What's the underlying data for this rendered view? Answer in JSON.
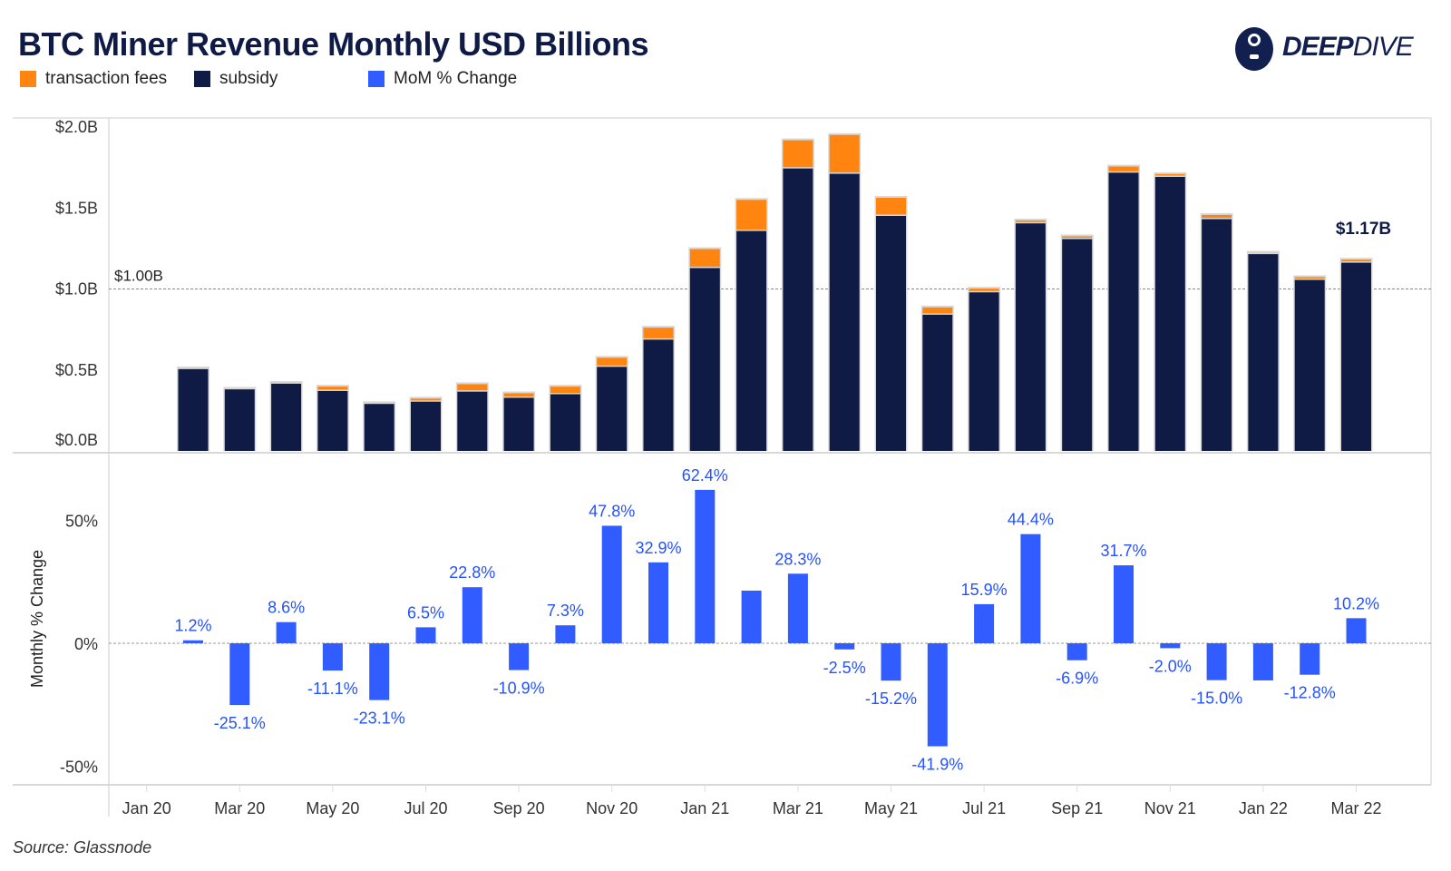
{
  "colors": {
    "fees": "#ff8510",
    "subsidy": "#101b45",
    "mom": "#315cff",
    "mom_label": "#2552ff"
  },
  "logo": {
    "bold": "DEEP",
    "thin": "DIVE"
  },
  "source": "Source: Glassnode",
  "chart_data": [
    {
      "type": "bar",
      "stacked": true,
      "title": "BTC Miner Revenue Monthly USD Billions",
      "legend": [
        "transaction fees",
        "subsidy",
        "MoM % Change"
      ],
      "legend_placement": "top-left",
      "ylabel": "",
      "ylim": [
        0,
        2.0
      ],
      "yticks": [
        {
          "v": 2.0,
          "label": "$2.0B"
        },
        {
          "v": 1.5,
          "label": "$1.5B"
        },
        {
          "v": 1.0,
          "label": "$1.0B"
        },
        {
          "v": 0.5,
          "label": "$0.5B"
        },
        {
          "v": 0.0,
          "label": "$0.0B"
        }
      ],
      "reference_line": {
        "value": 1.0,
        "label": "$1.00B"
      },
      "end_label": "$1.17B",
      "categories": [
        "Feb 20",
        "Mar 20",
        "Apr 20",
        "May 20",
        "Jun 20",
        "Jul 20",
        "Aug 20",
        "Sep 20",
        "Oct 20",
        "Nov 20",
        "Dec 20",
        "Jan 21",
        "Feb 21",
        "Mar 21",
        "Apr 21",
        "May 21",
        "Jun 21",
        "Jul 21",
        "Aug 21",
        "Sep 21",
        "Oct 21",
        "Nov 21",
        "Dec 21",
        "Jan 22",
        "Feb 22",
        "Mar 22"
      ],
      "series": [
        {
          "name": "subsidy",
          "values": [
            0.505,
            0.38,
            0.415,
            0.37,
            0.29,
            0.304,
            0.366,
            0.328,
            0.35,
            0.519,
            0.687,
            1.129,
            1.358,
            1.744,
            1.711,
            1.451,
            0.841,
            0.979,
            1.405,
            1.308,
            1.718,
            1.692,
            1.431,
            1.215,
            1.056,
            1.162
          ]
        },
        {
          "name": "transaction fees",
          "values": [
            0.005,
            0.004,
            0.005,
            0.027,
            0.005,
            0.019,
            0.046,
            0.028,
            0.047,
            0.056,
            0.074,
            0.117,
            0.192,
            0.174,
            0.24,
            0.112,
            0.045,
            0.023,
            0.018,
            0.017,
            0.038,
            0.017,
            0.026,
            0.009,
            0.017,
            0.019
          ]
        }
      ]
    },
    {
      "type": "bar",
      "ylabel": "Monthly % Change",
      "ylim": [
        -55,
        75
      ],
      "yticks": [
        {
          "v": 50,
          "label": "50%"
        },
        {
          "v": 0,
          "label": "0%"
        },
        {
          "v": -50,
          "label": "-50%"
        }
      ],
      "categories": [
        "Feb 20",
        "Mar 20",
        "Apr 20",
        "May 20",
        "Jun 20",
        "Jul 20",
        "Aug 20",
        "Sep 20",
        "Oct 20",
        "Nov 20",
        "Dec 20",
        "Jan 21",
        "Feb 21",
        "Mar 21",
        "Apr 21",
        "May 21",
        "Jun 21",
        "Jul 21",
        "Aug 21",
        "Sep 21",
        "Oct 21",
        "Nov 21",
        "Dec 21",
        "Jan 22",
        "Feb 22",
        "Mar 22"
      ],
      "values": [
        1.2,
        -25.1,
        8.6,
        -11.1,
        -23.1,
        6.5,
        22.8,
        -10.9,
        7.3,
        47.8,
        32.9,
        62.4,
        21.4,
        28.3,
        -2.5,
        -15.2,
        -41.9,
        15.9,
        44.4,
        -6.9,
        31.7,
        -2.0,
        -15.0,
        -15.1,
        -12.8,
        10.2
      ],
      "data_labels": [
        "1.2%",
        "-25.1%",
        "8.6%",
        "-11.1%",
        "-23.1%",
        "6.5%",
        "22.8%",
        "-10.9%",
        "7.3%",
        "47.8%",
        "32.9%",
        "62.4%",
        null,
        "28.3%",
        "-2.5%",
        "-15.2%",
        "-41.9%",
        "15.9%",
        "44.4%",
        "-6.9%",
        "31.7%",
        "-2.0%",
        "-15.0%",
        null,
        "-12.8%",
        "10.2%"
      ],
      "xticks": [
        "Jan 20",
        "Mar 20",
        "May 20",
        "Jul 20",
        "Sep 20",
        "Nov 20",
        "Jan 21",
        "Mar 21",
        "May 21",
        "Jul 21",
        "Sep 21",
        "Nov 21",
        "Jan 22",
        "Mar 22"
      ]
    }
  ]
}
